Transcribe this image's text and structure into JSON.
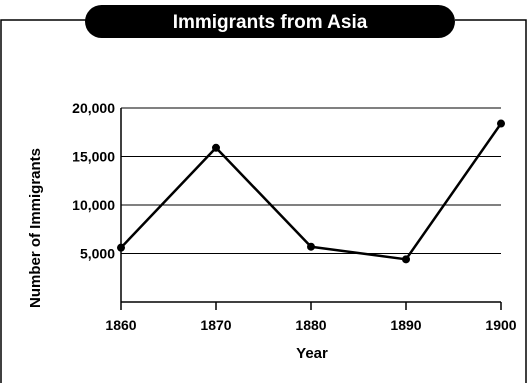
{
  "chart_data": {
    "type": "line",
    "title": "Immigrants from Asia",
    "xlabel": "Year",
    "ylabel": "Number of Immigrants",
    "x": [
      1860,
      1870,
      1880,
      1890,
      1900
    ],
    "y_ticks": [
      "5,000",
      "10,000",
      "15,000",
      "20,000"
    ],
    "y_tick_values": [
      5000,
      10000,
      15000,
      20000
    ],
    "x_ticks": [
      "1860",
      "1870",
      "1880",
      "1890",
      "1900"
    ],
    "ylim": [
      0,
      20000
    ],
    "grid": "horizontal",
    "series": [
      {
        "values": [
          5600,
          15900,
          5700,
          4400,
          18400
        ]
      }
    ],
    "colors": {
      "line": "#000000",
      "title_bg": "#000000",
      "title_text": "#ffffff"
    }
  }
}
